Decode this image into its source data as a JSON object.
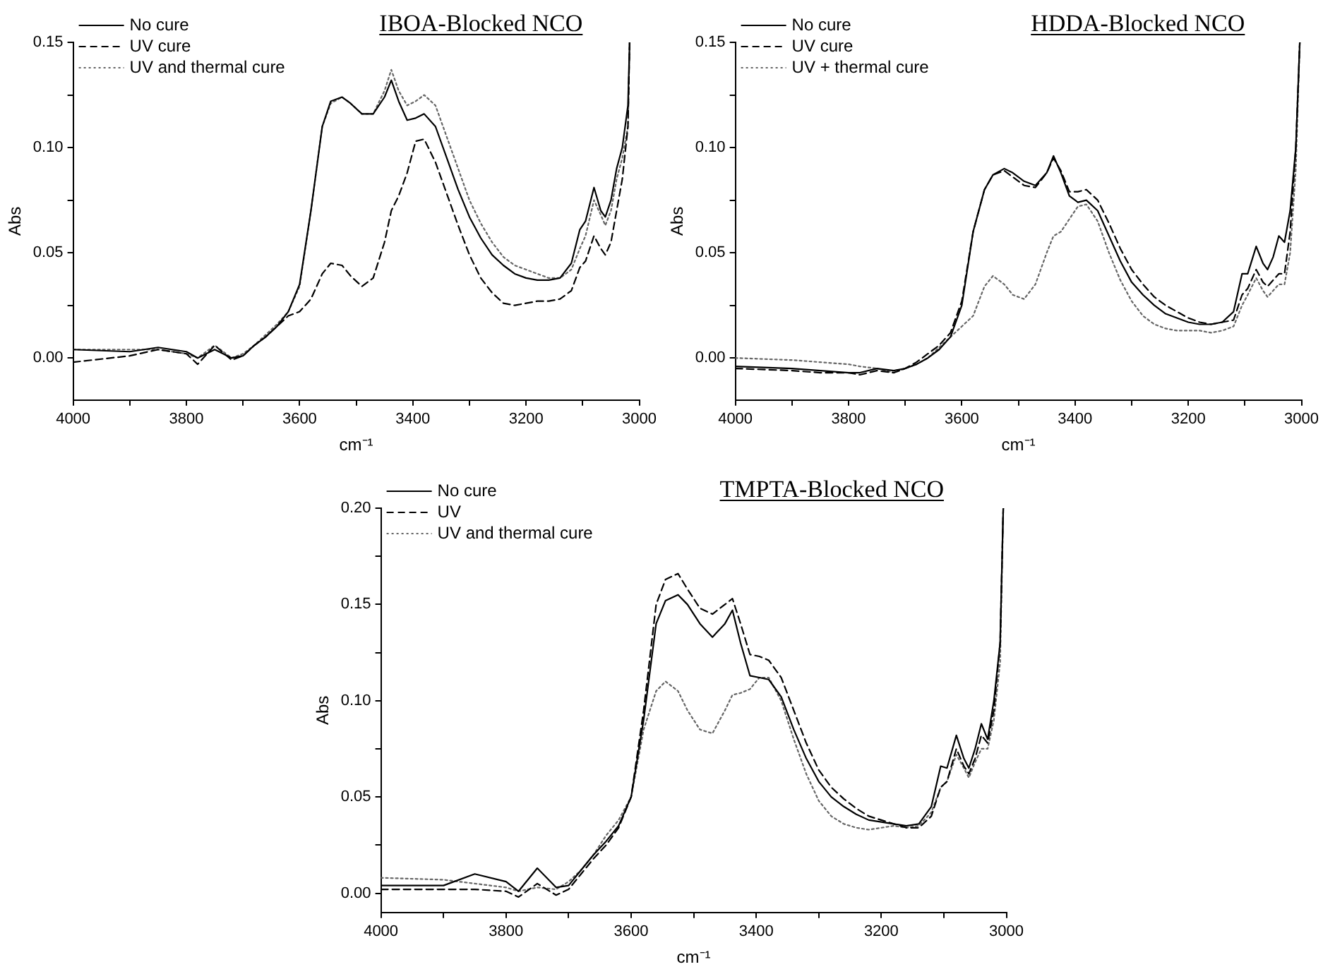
{
  "chart_data": [
    {
      "type": "line",
      "title": "IBOA-Blocked NCO",
      "xlabel": "cm⁻¹",
      "ylabel": "Abs",
      "legend": "top left",
      "grid": false,
      "marker": "none",
      "xlim": [
        4000,
        3000
      ],
      "xticks": [
        4000,
        {
          "value": 3900,
          "label": null
        },
        3800,
        {
          "value": 3700,
          "label": null
        },
        3600,
        {
          "value": 3500,
          "label": null
        },
        3400,
        {
          "value": 3300,
          "label": null
        },
        3200,
        {
          "value": 3100,
          "label": null
        },
        3000
      ],
      "ylim": [
        -0.02,
        0.15
      ],
      "yticks": [
        {
          "value": 0,
          "label": "0.00"
        },
        {
          "value": 0.025,
          "label": null
        },
        {
          "value": 0.05,
          "label": "0.05"
        },
        {
          "value": 0.075,
          "label": null
        },
        {
          "value": 0.1,
          "label": "0.10"
        },
        {
          "value": 0.125,
          "label": null
        },
        {
          "value": 0.15,
          "label": "0.15"
        }
      ],
      "x": [
        4000,
        3900,
        3850,
        3800,
        3780,
        3750,
        3720,
        3700,
        3680,
        3660,
        3640,
        3620,
        3600,
        3580,
        3560,
        3545,
        3525,
        3510,
        3490,
        3470,
        3450,
        3438,
        3425,
        3410,
        3395,
        3380,
        3360,
        3340,
        3320,
        3300,
        3280,
        3260,
        3240,
        3220,
        3200,
        3180,
        3160,
        3140,
        3120,
        3105,
        3095,
        3080,
        3068,
        3060,
        3050,
        3040,
        3030,
        3020,
        3017
      ],
      "series": [
        {
          "name": "No cure",
          "color": "#000000",
          "line_style": "solid",
          "values": [
            0.004,
            0.003,
            0.005,
            0.003,
            0.0,
            0.004,
            0.0,
            0.001,
            0.006,
            0.01,
            0.015,
            0.022,
            0.035,
            0.07,
            0.11,
            0.122,
            0.124,
            0.121,
            0.116,
            0.116,
            0.124,
            0.132,
            0.122,
            0.113,
            0.114,
            0.116,
            0.11,
            0.095,
            0.08,
            0.067,
            0.057,
            0.049,
            0.044,
            0.04,
            0.038,
            0.037,
            0.037,
            0.038,
            0.045,
            0.061,
            0.065,
            0.081,
            0.07,
            0.067,
            0.075,
            0.09,
            0.1,
            0.12,
            0.15
          ]
        },
        {
          "name": "UV cure",
          "color": "#000000",
          "line_style": "dashed",
          "values": [
            -0.002,
            0.001,
            0.004,
            0.002,
            -0.003,
            0.006,
            -0.001,
            0.001,
            0.006,
            0.01,
            0.015,
            0.02,
            0.022,
            0.028,
            0.04,
            0.045,
            0.044,
            0.039,
            0.034,
            0.038,
            0.055,
            0.07,
            0.077,
            0.088,
            0.103,
            0.104,
            0.093,
            0.078,
            0.063,
            0.049,
            0.038,
            0.031,
            0.026,
            0.025,
            0.026,
            0.027,
            0.027,
            0.028,
            0.032,
            0.043,
            0.046,
            0.058,
            0.052,
            0.049,
            0.055,
            0.07,
            0.085,
            0.11,
            0.15
          ]
        },
        {
          "name": "UV and thermal cure",
          "color": "#666666",
          "line_style": "dotted",
          "values": [
            0.004,
            0.004,
            0.004,
            0.002,
            0.0,
            0.006,
            0.0,
            0.002,
            0.006,
            0.011,
            0.016,
            0.022,
            0.034,
            0.07,
            0.11,
            0.121,
            0.124,
            0.121,
            0.116,
            0.116,
            0.127,
            0.137,
            0.127,
            0.12,
            0.122,
            0.125,
            0.12,
            0.105,
            0.09,
            0.075,
            0.064,
            0.055,
            0.048,
            0.044,
            0.042,
            0.04,
            0.038,
            0.038,
            0.042,
            0.052,
            0.058,
            0.075,
            0.068,
            0.063,
            0.07,
            0.085,
            0.095,
            0.11,
            0.15
          ]
        }
      ]
    },
    {
      "type": "line",
      "title": "HDDA-Blocked NCO",
      "xlabel": "cm⁻¹",
      "ylabel": "Abs",
      "legend": "top left",
      "grid": false,
      "marker": "none",
      "xlim": [
        4000,
        3000
      ],
      "xticks": [
        4000,
        {
          "value": 3900,
          "label": null
        },
        3800,
        {
          "value": 3700,
          "label": null
        },
        3600,
        {
          "value": 3500,
          "label": null
        },
        3400,
        {
          "value": 3300,
          "label": null
        },
        3200,
        {
          "value": 3100,
          "label": null
        },
        3000
      ],
      "ylim": [
        -0.02,
        0.15
      ],
      "yticks": [
        {
          "value": 0,
          "label": "0.00"
        },
        {
          "value": 0.025,
          "label": null
        },
        {
          "value": 0.05,
          "label": "0.05"
        },
        {
          "value": 0.075,
          "label": null
        },
        {
          "value": 0.1,
          "label": "0.10"
        },
        {
          "value": 0.125,
          "label": null
        },
        {
          "value": 0.15,
          "label": "0.15"
        }
      ],
      "x": [
        4000,
        3900,
        3850,
        3800,
        3780,
        3750,
        3720,
        3700,
        3680,
        3660,
        3640,
        3620,
        3600,
        3580,
        3560,
        3545,
        3525,
        3510,
        3490,
        3470,
        3450,
        3438,
        3425,
        3410,
        3395,
        3380,
        3360,
        3340,
        3320,
        3300,
        3280,
        3260,
        3240,
        3220,
        3200,
        3180,
        3160,
        3140,
        3120,
        3105,
        3095,
        3080,
        3068,
        3060,
        3050,
        3040,
        3030,
        3020,
        3010,
        3003
      ],
      "series": [
        {
          "name": "No cure",
          "color": "#000000",
          "line_style": "solid",
          "values": [
            -0.004,
            -0.005,
            -0.006,
            -0.007,
            -0.007,
            -0.005,
            -0.006,
            -0.005,
            -0.003,
            0.0,
            0.004,
            0.01,
            0.025,
            0.06,
            0.08,
            0.087,
            0.09,
            0.088,
            0.084,
            0.082,
            0.088,
            0.096,
            0.088,
            0.077,
            0.074,
            0.075,
            0.07,
            0.058,
            0.046,
            0.036,
            0.03,
            0.025,
            0.021,
            0.019,
            0.017,
            0.016,
            0.016,
            0.017,
            0.022,
            0.04,
            0.04,
            0.053,
            0.045,
            0.042,
            0.048,
            0.058,
            0.055,
            0.07,
            0.1,
            0.15
          ]
        },
        {
          "name": "UV cure",
          "color": "#000000",
          "line_style": "dashed",
          "values": [
            -0.005,
            -0.006,
            -0.007,
            -0.007,
            -0.008,
            -0.006,
            -0.007,
            -0.005,
            -0.002,
            0.002,
            0.006,
            0.012,
            0.027,
            0.06,
            0.08,
            0.087,
            0.089,
            0.086,
            0.082,
            0.081,
            0.088,
            0.095,
            0.089,
            0.079,
            0.079,
            0.08,
            0.075,
            0.064,
            0.052,
            0.042,
            0.035,
            0.029,
            0.025,
            0.022,
            0.019,
            0.017,
            0.016,
            0.017,
            0.018,
            0.03,
            0.033,
            0.042,
            0.036,
            0.034,
            0.037,
            0.04,
            0.04,
            0.06,
            0.1,
            0.15
          ]
        },
        {
          "name": "UV + thermal cure",
          "color": "#666666",
          "line_style": "dotted",
          "values": [
            0.0,
            -0.001,
            -0.002,
            -0.003,
            -0.004,
            -0.005,
            -0.007,
            -0.005,
            -0.003,
            0.0,
            0.005,
            0.01,
            0.015,
            0.02,
            0.034,
            0.039,
            0.035,
            0.03,
            0.028,
            0.035,
            0.05,
            0.058,
            0.06,
            0.066,
            0.072,
            0.073,
            0.065,
            0.05,
            0.037,
            0.027,
            0.02,
            0.016,
            0.014,
            0.013,
            0.013,
            0.013,
            0.012,
            0.013,
            0.015,
            0.025,
            0.03,
            0.038,
            0.032,
            0.029,
            0.032,
            0.035,
            0.035,
            0.05,
            0.09,
            0.15
          ]
        }
      ]
    },
    {
      "type": "line",
      "title": "TMPTA-Blocked NCO",
      "xlabel": "cm⁻¹",
      "ylabel": "Abs",
      "legend": "top left",
      "grid": false,
      "marker": "none",
      "xlim": [
        4000,
        3000
      ],
      "xticks": [
        4000,
        {
          "value": 3900,
          "label": null
        },
        3800,
        {
          "value": 3700,
          "label": null
        },
        3600,
        {
          "value": 3500,
          "label": null
        },
        3400,
        {
          "value": 3300,
          "label": null
        },
        3200,
        {
          "value": 3100,
          "label": null
        },
        3000
      ],
      "ylim": [
        -0.01,
        0.2
      ],
      "yticks": [
        {
          "value": 0,
          "label": "0.00"
        },
        {
          "value": 0.025,
          "label": null
        },
        {
          "value": 0.05,
          "label": "0.05"
        },
        {
          "value": 0.075,
          "label": null
        },
        {
          "value": 0.1,
          "label": "0.10"
        },
        {
          "value": 0.125,
          "label": null
        },
        {
          "value": 0.15,
          "label": "0.15"
        },
        {
          "value": 0.175,
          "label": null
        },
        {
          "value": 0.2,
          "label": "0.20"
        }
      ],
      "x": [
        4000,
        3900,
        3850,
        3800,
        3780,
        3750,
        3720,
        3700,
        3680,
        3660,
        3640,
        3620,
        3600,
        3580,
        3560,
        3545,
        3525,
        3510,
        3490,
        3470,
        3450,
        3438,
        3425,
        3410,
        3395,
        3380,
        3360,
        3340,
        3320,
        3300,
        3280,
        3260,
        3240,
        3220,
        3200,
        3180,
        3160,
        3140,
        3120,
        3105,
        3095,
        3080,
        3068,
        3060,
        3050,
        3040,
        3030,
        3020,
        3010,
        3005
      ],
      "series": [
        {
          "name": "No cure",
          "color": "#000000",
          "line_style": "solid",
          "values": [
            0.004,
            0.004,
            0.01,
            0.006,
            0.001,
            0.013,
            0.003,
            0.004,
            0.012,
            0.02,
            0.027,
            0.035,
            0.05,
            0.09,
            0.14,
            0.152,
            0.155,
            0.15,
            0.14,
            0.133,
            0.14,
            0.147,
            0.13,
            0.113,
            0.112,
            0.111,
            0.102,
            0.085,
            0.07,
            0.058,
            0.05,
            0.045,
            0.041,
            0.038,
            0.037,
            0.036,
            0.035,
            0.036,
            0.045,
            0.066,
            0.065,
            0.082,
            0.07,
            0.065,
            0.075,
            0.088,
            0.08,
            0.1,
            0.13,
            0.2
          ]
        },
        {
          "name": "UV",
          "color": "#000000",
          "line_style": "dashed",
          "values": [
            0.002,
            0.002,
            0.002,
            0.001,
            -0.002,
            0.005,
            -0.001,
            0.002,
            0.01,
            0.018,
            0.025,
            0.034,
            0.05,
            0.095,
            0.15,
            0.163,
            0.166,
            0.158,
            0.148,
            0.145,
            0.15,
            0.153,
            0.14,
            0.124,
            0.123,
            0.121,
            0.112,
            0.095,
            0.078,
            0.064,
            0.055,
            0.049,
            0.044,
            0.04,
            0.038,
            0.036,
            0.034,
            0.034,
            0.04,
            0.055,
            0.058,
            0.075,
            0.066,
            0.062,
            0.07,
            0.082,
            0.078,
            0.095,
            0.13,
            0.2
          ]
        },
        {
          "name": "UV and thermal cure",
          "color": "#666666",
          "line_style": "dotted",
          "values": [
            0.008,
            0.007,
            0.005,
            0.003,
            0.001,
            0.003,
            0.002,
            0.006,
            0.012,
            0.02,
            0.03,
            0.038,
            0.05,
            0.085,
            0.105,
            0.11,
            0.105,
            0.095,
            0.085,
            0.083,
            0.095,
            0.103,
            0.104,
            0.106,
            0.112,
            0.112,
            0.1,
            0.08,
            0.062,
            0.048,
            0.04,
            0.036,
            0.034,
            0.033,
            0.034,
            0.035,
            0.034,
            0.035,
            0.042,
            0.055,
            0.058,
            0.072,
            0.065,
            0.06,
            0.068,
            0.075,
            0.075,
            0.09,
            0.12,
            0.2
          ]
        }
      ]
    }
  ]
}
